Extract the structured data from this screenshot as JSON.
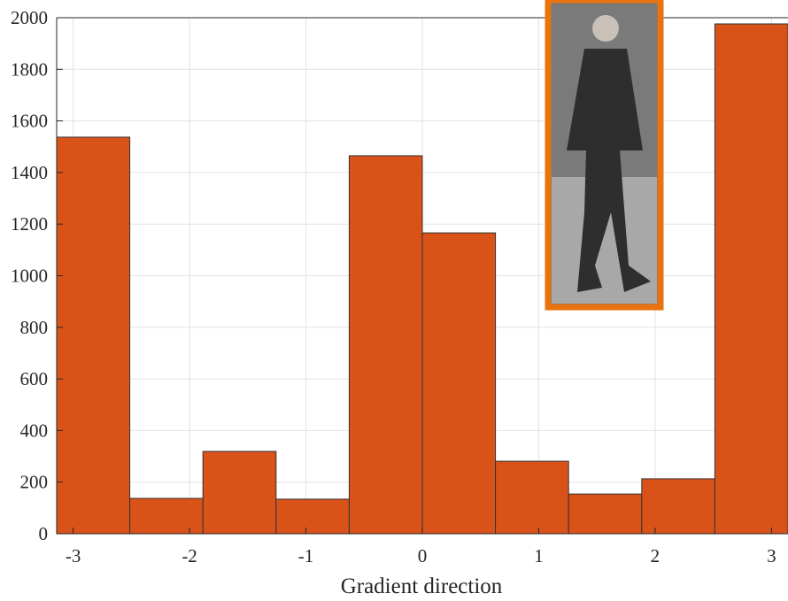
{
  "chart_data": {
    "type": "histogram",
    "xlabel": "Gradient direction",
    "bins": [
      -3.1416,
      -2.5133,
      -1.885,
      -1.2566,
      -0.6283,
      0,
      0.6283,
      1.2566,
      1.885,
      2.5133,
      3.1416
    ],
    "counts": [
      1537,
      137,
      319,
      134,
      1465,
      1166,
      281,
      154,
      213,
      1976
    ],
    "color": "#d95319",
    "xlim": [
      -3.1416,
      3.1416
    ],
    "xticks": [
      -3,
      -2,
      -1,
      0,
      1,
      2,
      3
    ],
    "ylim": [
      0,
      2000
    ],
    "yticks": [
      0,
      200,
      400,
      600,
      800,
      1000,
      1200,
      1400,
      1600,
      1800,
      2000
    ],
    "grid": true
  }
}
